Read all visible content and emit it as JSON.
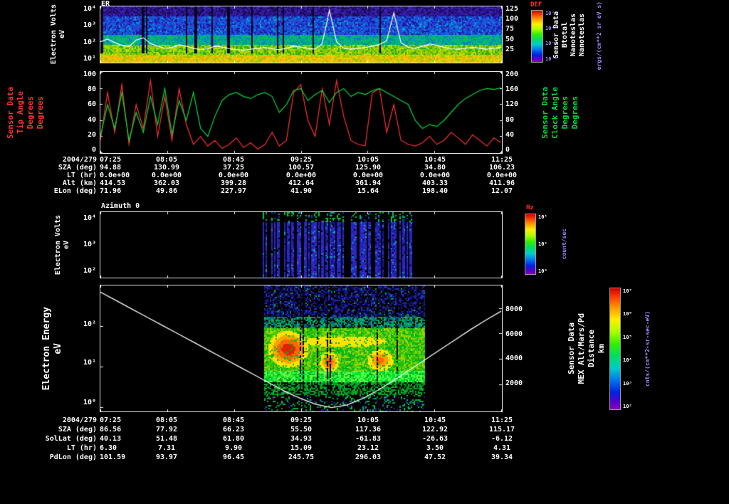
{
  "colors": {
    "background": "#000000",
    "red_label": "#ff3030",
    "green_label": "#00dd33",
    "purple_label": "#9b8cff",
    "white": "#ffffff"
  },
  "panel1": {
    "title": "ER",
    "left_axis": {
      "label_lines": [
        "Electron Volts",
        "eV"
      ],
      "ticks": [
        "10⁴",
        "10³",
        "10²",
        "10¹"
      ]
    },
    "right_axis": {
      "ticks": [
        "125",
        "100",
        "75",
        "50",
        "25"
      ],
      "label_lines": [
        "Sensor Data",
        "Btotal",
        "Nanoteslas",
        "Nanoteslas"
      ]
    },
    "colorbar": {
      "title": "DEF",
      "ticks": [
        "10⁻⁵",
        "10⁻⁶",
        "10⁻⁷",
        "10⁻⁸"
      ],
      "unit_lines": [
        "ergs/(cm**2 sr eV s)"
      ]
    }
  },
  "panel2": {
    "left_axis": {
      "ticks": [
        "100",
        "80",
        "60",
        "40",
        "20",
        "0"
      ],
      "label_lines": [
        "Sensor Data",
        "Tip Angle",
        "Degrees",
        "Degrees"
      ]
    },
    "right_axis": {
      "ticks": [
        "200",
        "160",
        "120",
        "80",
        "40",
        "0"
      ],
      "label_lines": [
        "Sensor Data",
        "Clock Angle",
        "Degrees",
        "Degrees"
      ]
    }
  },
  "panel3": {
    "title": "Azimuth 0",
    "left_axis": {
      "label_lines": [
        "Electron Volts",
        "eV"
      ],
      "ticks": [
        "10⁴",
        "10³",
        "10²"
      ]
    },
    "colorbar": {
      "title": "Hz",
      "ticks": [
        "10⁴",
        "10²",
        "10⁰"
      ],
      "unit_lines": [
        "count/sec"
      ]
    }
  },
  "panel4": {
    "left_axis": {
      "label_lines": [
        "Electron Energy",
        "eV"
      ],
      "ticks": [
        "10²",
        "10¹",
        "10⁰"
      ]
    },
    "right_axis": {
      "ticks": [
        "8000",
        "6000",
        "4000",
        "2000"
      ],
      "label_lines": [
        "Sensor Data",
        "MEX Alt/Mars/Pd",
        "Distance",
        "km"
      ]
    },
    "colorbar": {
      "ticks": [
        "10⁷",
        "10⁶",
        "10⁵",
        "10⁴",
        "10³",
        "10²"
      ],
      "unit_lines": [
        "cnts/(cm**2-sr-sec-eV)"
      ]
    }
  },
  "table1": {
    "rows": [
      {
        "label": "2004/279",
        "values": [
          "07:25",
          "08:05",
          "08:45",
          "09:25",
          "10:05",
          "10:45",
          "11:25"
        ]
      },
      {
        "label": "SZA (deg)",
        "values": [
          "94.88",
          "130.99",
          "37.25",
          "100.57",
          "125.90",
          "34.80",
          "106.23"
        ]
      },
      {
        "label": "LT (hr)",
        "values": [
          "0.0e+00",
          "0.0e+00",
          "0.0e+00",
          "0.0e+00",
          "0.0e+00",
          "0.0e+00",
          "0.0e+00"
        ]
      },
      {
        "label": "Alt (km)",
        "values": [
          "414.53",
          "362.03",
          "399.28",
          "412.64",
          "361.94",
          "403.33",
          "411.96"
        ]
      },
      {
        "label": "ELon (deg)",
        "values": [
          "71.96",
          "49.86",
          "227.97",
          "41.90",
          "15.64",
          "198.40",
          "12.07"
        ]
      }
    ]
  },
  "table2": {
    "rows": [
      {
        "label": "2004/279",
        "values": [
          "07:25",
          "08:05",
          "08:45",
          "09:25",
          "10:05",
          "10:45",
          "11:25"
        ]
      },
      {
        "label": "SZA (deg)",
        "values": [
          "86.56",
          "77.92",
          "66.23",
          "55.50",
          "117.36",
          "122.92",
          "115.17"
        ]
      },
      {
        "label": "SolLat (deg)",
        "values": [
          "40.13",
          "51.48",
          "61.80",
          "34.93",
          "-61.83",
          "-26.63",
          "-6.12"
        ]
      },
      {
        "label": "LT (hr)",
        "values": [
          "6.30",
          "7.31",
          "9.90",
          "15.09",
          "23.12",
          "3.50",
          "4.31"
        ]
      },
      {
        "label": "PdLon (deg)",
        "values": [
          "101.59",
          "93.97",
          "96.45",
          "245.75",
          "296.03",
          "47.52",
          "39.34"
        ]
      }
    ]
  },
  "chart_data": [
    {
      "type": "heatmap",
      "title": "ER",
      "ylabel": "Electron Volts (eV)",
      "y_ticks": [
        "10⁴",
        "10³",
        "10²",
        "10¹"
      ],
      "x_ticks": [
        "07:25",
        "08:05",
        "08:45",
        "09:25",
        "10:05",
        "10:45",
        "11:25"
      ],
      "x_date_label": "2004/279",
      "colorbar": {
        "title": "DEF",
        "unit": "ergs/(cm**2 sr eV s)",
        "ticks": [
          "10⁻⁵",
          "10⁻⁶",
          "10⁻⁷",
          "10⁻⁸"
        ]
      },
      "description": "Dense electron energy-flux spectrogram: blue/purple at high energies, green-yellow band at lowest energies, intermittent dark dropout columns",
      "overlay_series": {
        "name": "Btotal",
        "unit": "Nanoteslas",
        "axis_range": [
          0,
          125
        ],
        "right_ticks": [
          125,
          100,
          75,
          50,
          25
        ],
        "values": [
          46,
          52,
          44,
          38,
          35,
          50,
          55,
          42,
          36,
          31,
          33,
          39,
          36,
          31,
          28,
          30,
          36,
          34,
          30,
          28,
          27,
          29,
          31,
          33,
          30,
          28,
          31,
          36,
          34,
          31,
          29,
          42,
          118,
          46,
          31,
          29,
          31,
          33,
          36,
          40,
          48,
          112,
          44,
          33,
          31,
          36,
          41,
          38,
          33,
          30,
          29,
          31,
          33,
          31,
          29,
          31,
          33
        ]
      }
    },
    {
      "type": "line",
      "x_ticks": [
        "07:25",
        "08:05",
        "08:45",
        "09:25",
        "10:05",
        "10:45",
        "11:25"
      ],
      "x_date_label": "2004/279",
      "series": [
        {
          "name": "Tip Angle",
          "unit": "Degrees",
          "color": "#ff3030",
          "axis_range": [
            0,
            100
          ],
          "values": [
            15,
            75,
            25,
            85,
            10,
            60,
            30,
            90,
            20,
            70,
            15,
            80,
            35,
            10,
            20,
            8,
            15,
            5,
            10,
            18,
            6,
            12,
            4,
            10,
            25,
            8,
            15,
            75,
            85,
            40,
            20,
            80,
            35,
            90,
            45,
            15,
            10,
            8,
            75,
            80,
            25,
            60,
            15,
            10,
            8,
            12,
            20,
            10,
            15,
            25,
            18,
            10,
            22,
            15,
            8,
            18,
            12
          ]
        },
        {
          "name": "Clock Angle",
          "unit": "Degrees",
          "color": "#00dd33",
          "axis_range": [
            0,
            200
          ],
          "values": [
            40,
            120,
            60,
            150,
            30,
            100,
            50,
            140,
            70,
            160,
            45,
            130,
            80,
            150,
            60,
            40,
            90,
            130,
            145,
            150,
            140,
            135,
            145,
            150,
            140,
            100,
            120,
            155,
            160,
            130,
            145,
            155,
            125,
            150,
            160,
            140,
            150,
            145,
            155,
            160,
            150,
            140,
            130,
            120,
            80,
            60,
            70,
            65,
            80,
            100,
            120,
            135,
            145,
            155,
            160,
            158,
            162
          ]
        }
      ]
    },
    {
      "type": "heatmap",
      "title": "Azimuth 0",
      "ylabel": "Electron Volts (eV)",
      "y_ticks": [
        "10⁴",
        "10³",
        "10²"
      ],
      "x_ticks": [
        "07:25",
        "08:05",
        "08:45",
        "09:25",
        "10:05",
        "10:45",
        "11:25"
      ],
      "colorbar": {
        "title": "Hz",
        "unit": "count/sec",
        "ticks": [
          "10⁴",
          "10²",
          "10⁰"
        ]
      },
      "data_window_frac": [
        0.405,
        0.775
      ],
      "description": "Mostly empty panel with sparse vertical blue/purple stripes between ~09:00 and ~10:30, scattered green specks near top"
    },
    {
      "type": "heatmap",
      "ylabel": "Electron Energy (eV)",
      "y_ticks": [
        "10²",
        "10¹",
        "10⁰"
      ],
      "x_ticks": [
        "07:25",
        "08:05",
        "08:45",
        "09:25",
        "10:05",
        "10:45",
        "11:25"
      ],
      "x_date_label": "2004/279",
      "colorbar": {
        "unit": "cnts/(cm**2-sr-sec-eV)",
        "ticks": [
          "10⁷",
          "10⁶",
          "10⁵",
          "10⁴",
          "10³",
          "10²"
        ]
      },
      "data_window_frac": [
        0.407,
        0.805
      ],
      "hot_spots": [
        {
          "t": [
            0.0,
            0.3
          ],
          "f": [
            0.33,
            0.67
          ],
          "strength": 1.0
        },
        {
          "t": [
            0.33,
            0.48
          ],
          "f": [
            0.5,
            0.7
          ],
          "strength": 0.78
        },
        {
          "t": [
            0.62,
            0.83
          ],
          "f": [
            0.48,
            0.7
          ],
          "strength": 0.68
        },
        {
          "t": [
            0.0,
            1.0
          ],
          "f": [
            0.36,
            0.52
          ],
          "strength": 0.32
        }
      ],
      "description": "Electron energy spectrogram during periapsis pass: blue speckle at high energy, green mid band with yellow/orange/red flux cores, bright green low-energy band; white V-shaped spacecraft distance curve",
      "overlay_series": {
        "name": "MEX Alt/Mars/Pd Distance",
        "unit": "km",
        "axis_range": [
          0,
          9760
        ],
        "right_ticks": [
          8000,
          6000,
          4000,
          2000
        ],
        "values": [
          9300,
          8650,
          8000,
          7350,
          6700,
          6050,
          5400,
          4750,
          4100,
          3450,
          2800,
          2150,
          1500,
          950,
          500,
          250,
          450,
          950,
          1600,
          2350,
          3150,
          3950,
          4750,
          5550,
          6350,
          7100,
          7800
        ]
      }
    }
  ]
}
